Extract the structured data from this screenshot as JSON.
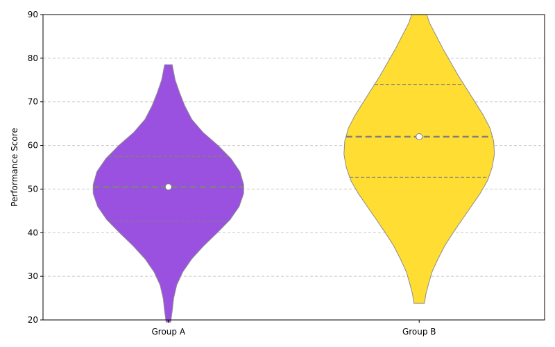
{
  "chart_data": {
    "type": "violin",
    "title": "",
    "xlabel": "",
    "ylabel": "Performance Score",
    "ylim": [
      20,
      90
    ],
    "yticks": [
      20,
      30,
      40,
      50,
      60,
      70,
      80,
      90
    ],
    "categories": [
      "Group A",
      "Group B"
    ],
    "grid": {
      "y": true,
      "style": "dashed"
    },
    "series": [
      {
        "category": "Group A",
        "color": "#9b51e0",
        "min": 19.5,
        "max": 78.5,
        "quartiles": [
          42.6,
          50.5,
          57.5
        ],
        "mean": 50.5,
        "density_profile": [
          [
            19.5,
            0.03
          ],
          [
            22,
            0.05
          ],
          [
            25,
            0.07
          ],
          [
            28,
            0.11
          ],
          [
            31,
            0.19
          ],
          [
            34,
            0.31
          ],
          [
            37,
            0.47
          ],
          [
            40,
            0.65
          ],
          [
            43,
            0.82
          ],
          [
            46,
            0.94
          ],
          [
            49,
            1.0
          ],
          [
            51,
            1.0
          ],
          [
            54,
            0.95
          ],
          [
            57,
            0.83
          ],
          [
            60,
            0.66
          ],
          [
            63,
            0.46
          ],
          [
            66,
            0.31
          ],
          [
            69,
            0.22
          ],
          [
            72,
            0.15
          ],
          [
            75,
            0.09
          ],
          [
            78.5,
            0.05
          ]
        ]
      },
      {
        "category": "Group B",
        "color": "#ffdd33",
        "min": 23.8,
        "max": 90,
        "quartiles": [
          52.7,
          62.0,
          74.0
        ],
        "mean": 62.0,
        "density_profile": [
          [
            23.8,
            0.07
          ],
          [
            26,
            0.09
          ],
          [
            28,
            0.12
          ],
          [
            31,
            0.17
          ],
          [
            34,
            0.25
          ],
          [
            37,
            0.34
          ],
          [
            40,
            0.45
          ],
          [
            43,
            0.57
          ],
          [
            46,
            0.69
          ],
          [
            49,
            0.81
          ],
          [
            52,
            0.91
          ],
          [
            55,
            0.97
          ],
          [
            58,
            1.0
          ],
          [
            61,
            0.99
          ],
          [
            64,
            0.94
          ],
          [
            67,
            0.85
          ],
          [
            70,
            0.74
          ],
          [
            73,
            0.63
          ],
          [
            76,
            0.52
          ],
          [
            79,
            0.42
          ],
          [
            82,
            0.32
          ],
          [
            85,
            0.23
          ],
          [
            88,
            0.14
          ],
          [
            90,
            0.1
          ]
        ]
      }
    ]
  }
}
